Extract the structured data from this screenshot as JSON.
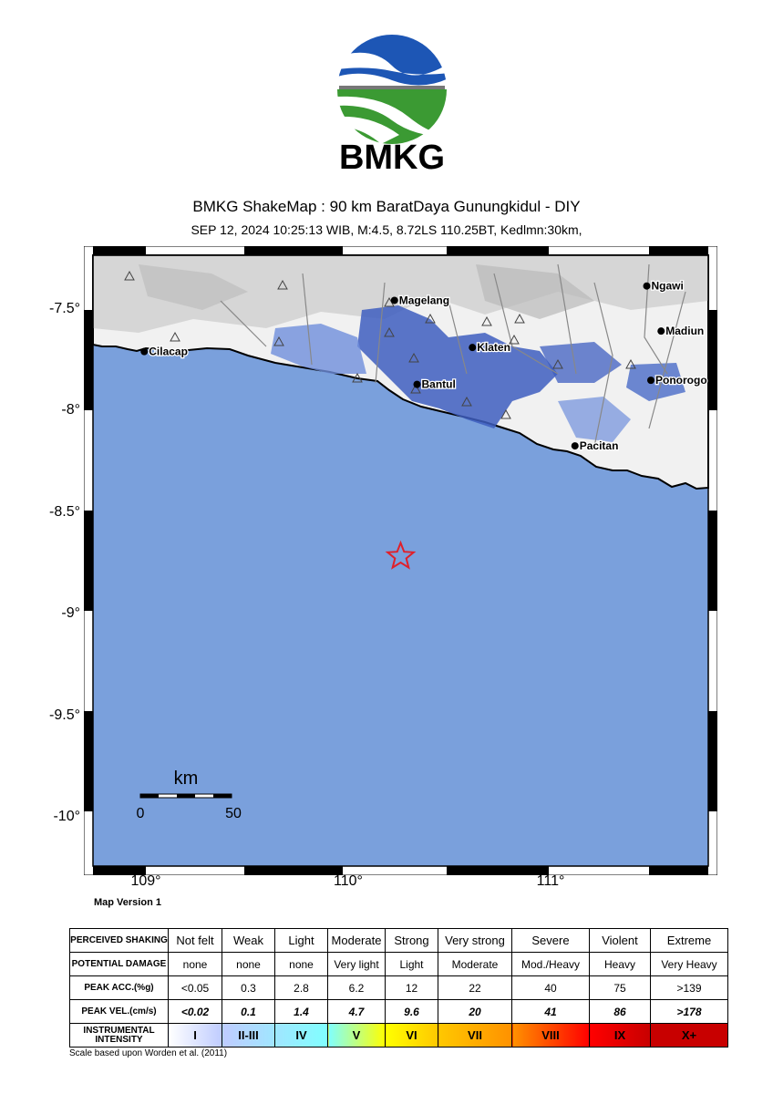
{
  "logo": {
    "text": "BMKG"
  },
  "header": {
    "title": "BMKG ShakeMap : 90 km BaratDaya Gunungkidul - DIY",
    "subtitle": "SEP 12, 2024 10:25:13 WIB, M:4.5, 8.72LS 110.25BT, Kedlmn:30km,"
  },
  "map": {
    "lat_labels": [
      "-7.5°",
      "-8°",
      "-8.5°",
      "-9°",
      "-9.5°",
      "-10°"
    ],
    "lon_labels": [
      "109°",
      "110°",
      "111°"
    ],
    "epicenter": {
      "lat": -8.72,
      "lon": 110.25
    },
    "cities": [
      {
        "name": "Magelang",
        "lat": -7.47,
        "lon": 110.22
      },
      {
        "name": "Klaten",
        "lat": -7.7,
        "lon": 110.6
      },
      {
        "name": "Bantul",
        "lat": -7.88,
        "lon": 110.33
      },
      {
        "name": "Cilacap",
        "lat": -7.72,
        "lon": 109.0
      },
      {
        "name": "Ngawi",
        "lat": -7.4,
        "lon": 111.45
      },
      {
        "name": "Madiun",
        "lat": -7.62,
        "lon": 111.52
      },
      {
        "name": "Ponorogo",
        "lat": -7.86,
        "lon": 111.47
      },
      {
        "name": "Pacitan",
        "lat": -8.18,
        "lon": 111.1
      }
    ],
    "scale": {
      "unit": "km",
      "start": "0",
      "end": "50"
    },
    "version": "Map Version 1",
    "colors": {
      "sea": "#7aa0dc",
      "land": "#f2f2f2",
      "intensity": "#3e5ec0",
      "epicenter": "#e0202a"
    }
  },
  "legend": {
    "row_titles": [
      "PERCEIVED SHAKING",
      "POTENTIAL DAMAGE",
      "PEAK ACC.(%g)",
      "PEAK VEL.(cm/s)",
      "INSTRUMENTAL INTENSITY"
    ],
    "shaking": [
      "Not felt",
      "Weak",
      "Light",
      "Moderate",
      "Strong",
      "Very strong",
      "Severe",
      "Violent",
      "Extreme"
    ],
    "damage": [
      "none",
      "none",
      "none",
      "Very light",
      "Light",
      "Moderate",
      "Mod./Heavy",
      "Heavy",
      "Very Heavy"
    ],
    "acc": [
      "<0.05",
      "0.3",
      "2.8",
      "6.2",
      "12",
      "22",
      "40",
      "75",
      ">139"
    ],
    "vel": [
      "<0.02",
      "0.1",
      "1.4",
      "4.7",
      "9.6",
      "20",
      "41",
      "86",
      ">178"
    ],
    "intensity": [
      "I",
      "II-III",
      "IV",
      "V",
      "VI",
      "VII",
      "VIII",
      "IX",
      "X+"
    ],
    "intensity_colors": [
      "#ffffff",
      "#bfccff",
      "#a0e6ff",
      "#80ffff",
      "#ffff00",
      "#ffc800",
      "#ff9100",
      "#ff0000",
      "#c80000"
    ],
    "note": "Scale based upon Worden et al. (2011)"
  }
}
